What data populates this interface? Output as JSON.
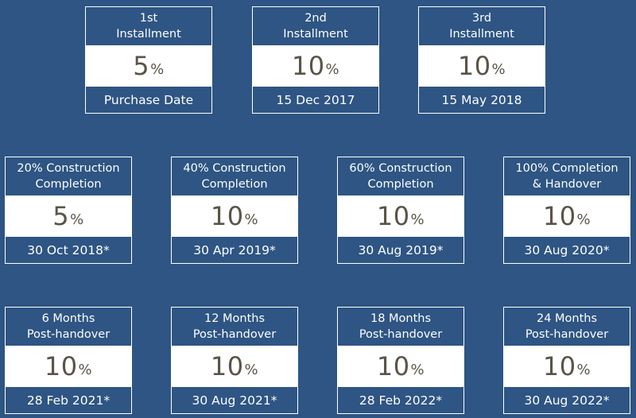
{
  "installments": [
    {
      "line1": "1st",
      "line2": "Installment",
      "percent": "5",
      "sign": "%",
      "date": "Purchase Date"
    },
    {
      "line1": "2nd",
      "line2": "Installment",
      "percent": "10",
      "sign": "%",
      "date": "15 Dec 2017"
    },
    {
      "line1": "3rd",
      "line2": "Installment",
      "percent": "10",
      "sign": "%",
      "date": "15 May 2018"
    },
    {
      "line1": "20% Construction",
      "line2": "Completion",
      "percent": "5",
      "sign": "%",
      "date": "30 Oct 2018*"
    },
    {
      "line1": "40% Construction",
      "line2": "Completion",
      "percent": "10",
      "sign": "%",
      "date": "30 Apr 2019*"
    },
    {
      "line1": "60% Construction",
      "line2": "Completion",
      "percent": "10",
      "sign": "%",
      "date": "30 Aug 2019*"
    },
    {
      "line1": "100% Completion",
      "line2": "& Handover",
      "percent": "10",
      "sign": "%",
      "date": "30 Aug 2020*"
    },
    {
      "line1": "6 Months",
      "line2": "Post-handover",
      "percent": "10",
      "sign": "%",
      "date": "28 Feb 2021*"
    },
    {
      "line1": "12 Months",
      "line2": "Post-handover",
      "percent": "10",
      "sign": "%",
      "date": "30 Aug 2021*"
    },
    {
      "line1": "18 Months",
      "line2": "Post-handover",
      "percent": "10",
      "sign": "%",
      "date": "28 Feb 2022*"
    },
    {
      "line1": "24 Months",
      "line2": "Post-handover",
      "percent": "10",
      "sign": "%",
      "date": "30 Aug 2022*"
    }
  ]
}
